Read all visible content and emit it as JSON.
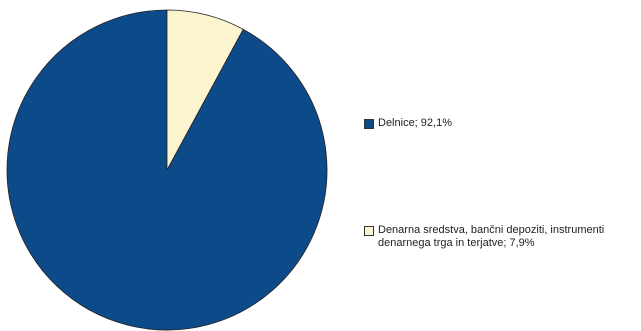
{
  "chart_data": {
    "type": "pie",
    "title": "",
    "slices": [
      {
        "label": "Delnice",
        "value": 92.1,
        "color": "#0d4a8a"
      },
      {
        "label": "Denarna sredstva, bančni depoziti, instrumenti\ndenarnega trga in terjatve",
        "value": 7.9,
        "color": "#fbf4cf"
      }
    ],
    "legend": {
      "placement": "right",
      "items": [
        {
          "text": "Delnice; 92,1%"
        },
        {
          "text": "Denarna sredstva, bančni depoziti, instrumenti\ndenarnega trga in terjatve; 7,9%"
        }
      ]
    },
    "start_angle_deg": 0,
    "direction": "counterclockwise"
  }
}
